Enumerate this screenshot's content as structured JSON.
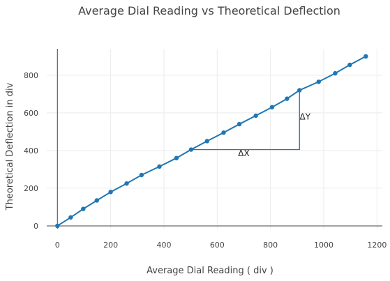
{
  "chart_data": {
    "type": "line",
    "title": "Average Dial Reading vs Theoretical Deflection",
    "xlabel": "Average Dial Reading ( div )",
    "ylabel": "Theoretical Deflection in div",
    "xlim": [
      -40,
      1220
    ],
    "ylim": [
      -15,
      940
    ],
    "xticks": [
      0,
      200,
      400,
      600,
      800,
      1000,
      1200
    ],
    "yticks": [
      0,
      200,
      400,
      600,
      800
    ],
    "grid": true,
    "legend": "none",
    "series": [
      {
        "color": "#1f77b4",
        "x": [
          0,
          50,
          97,
          148,
          200,
          260,
          316,
          383,
          447,
          502,
          562,
          624,
          683,
          745,
          806,
          862,
          909,
          981,
          1043,
          1098,
          1158
        ],
        "y": [
          0,
          45,
          90,
          135,
          180,
          225,
          270,
          315,
          360,
          405,
          450,
          495,
          540,
          585,
          630,
          675,
          720,
          765,
          810,
          855,
          900
        ]
      }
    ],
    "annotations": [
      {
        "text": "ΔX",
        "x": 700,
        "y": 370
      },
      {
        "text": "ΔY",
        "x": 930,
        "y": 565
      }
    ],
    "slope_triangle": {
      "x0": 502,
      "y0": 405,
      "x1": 909,
      "y1": 720
    }
  }
}
